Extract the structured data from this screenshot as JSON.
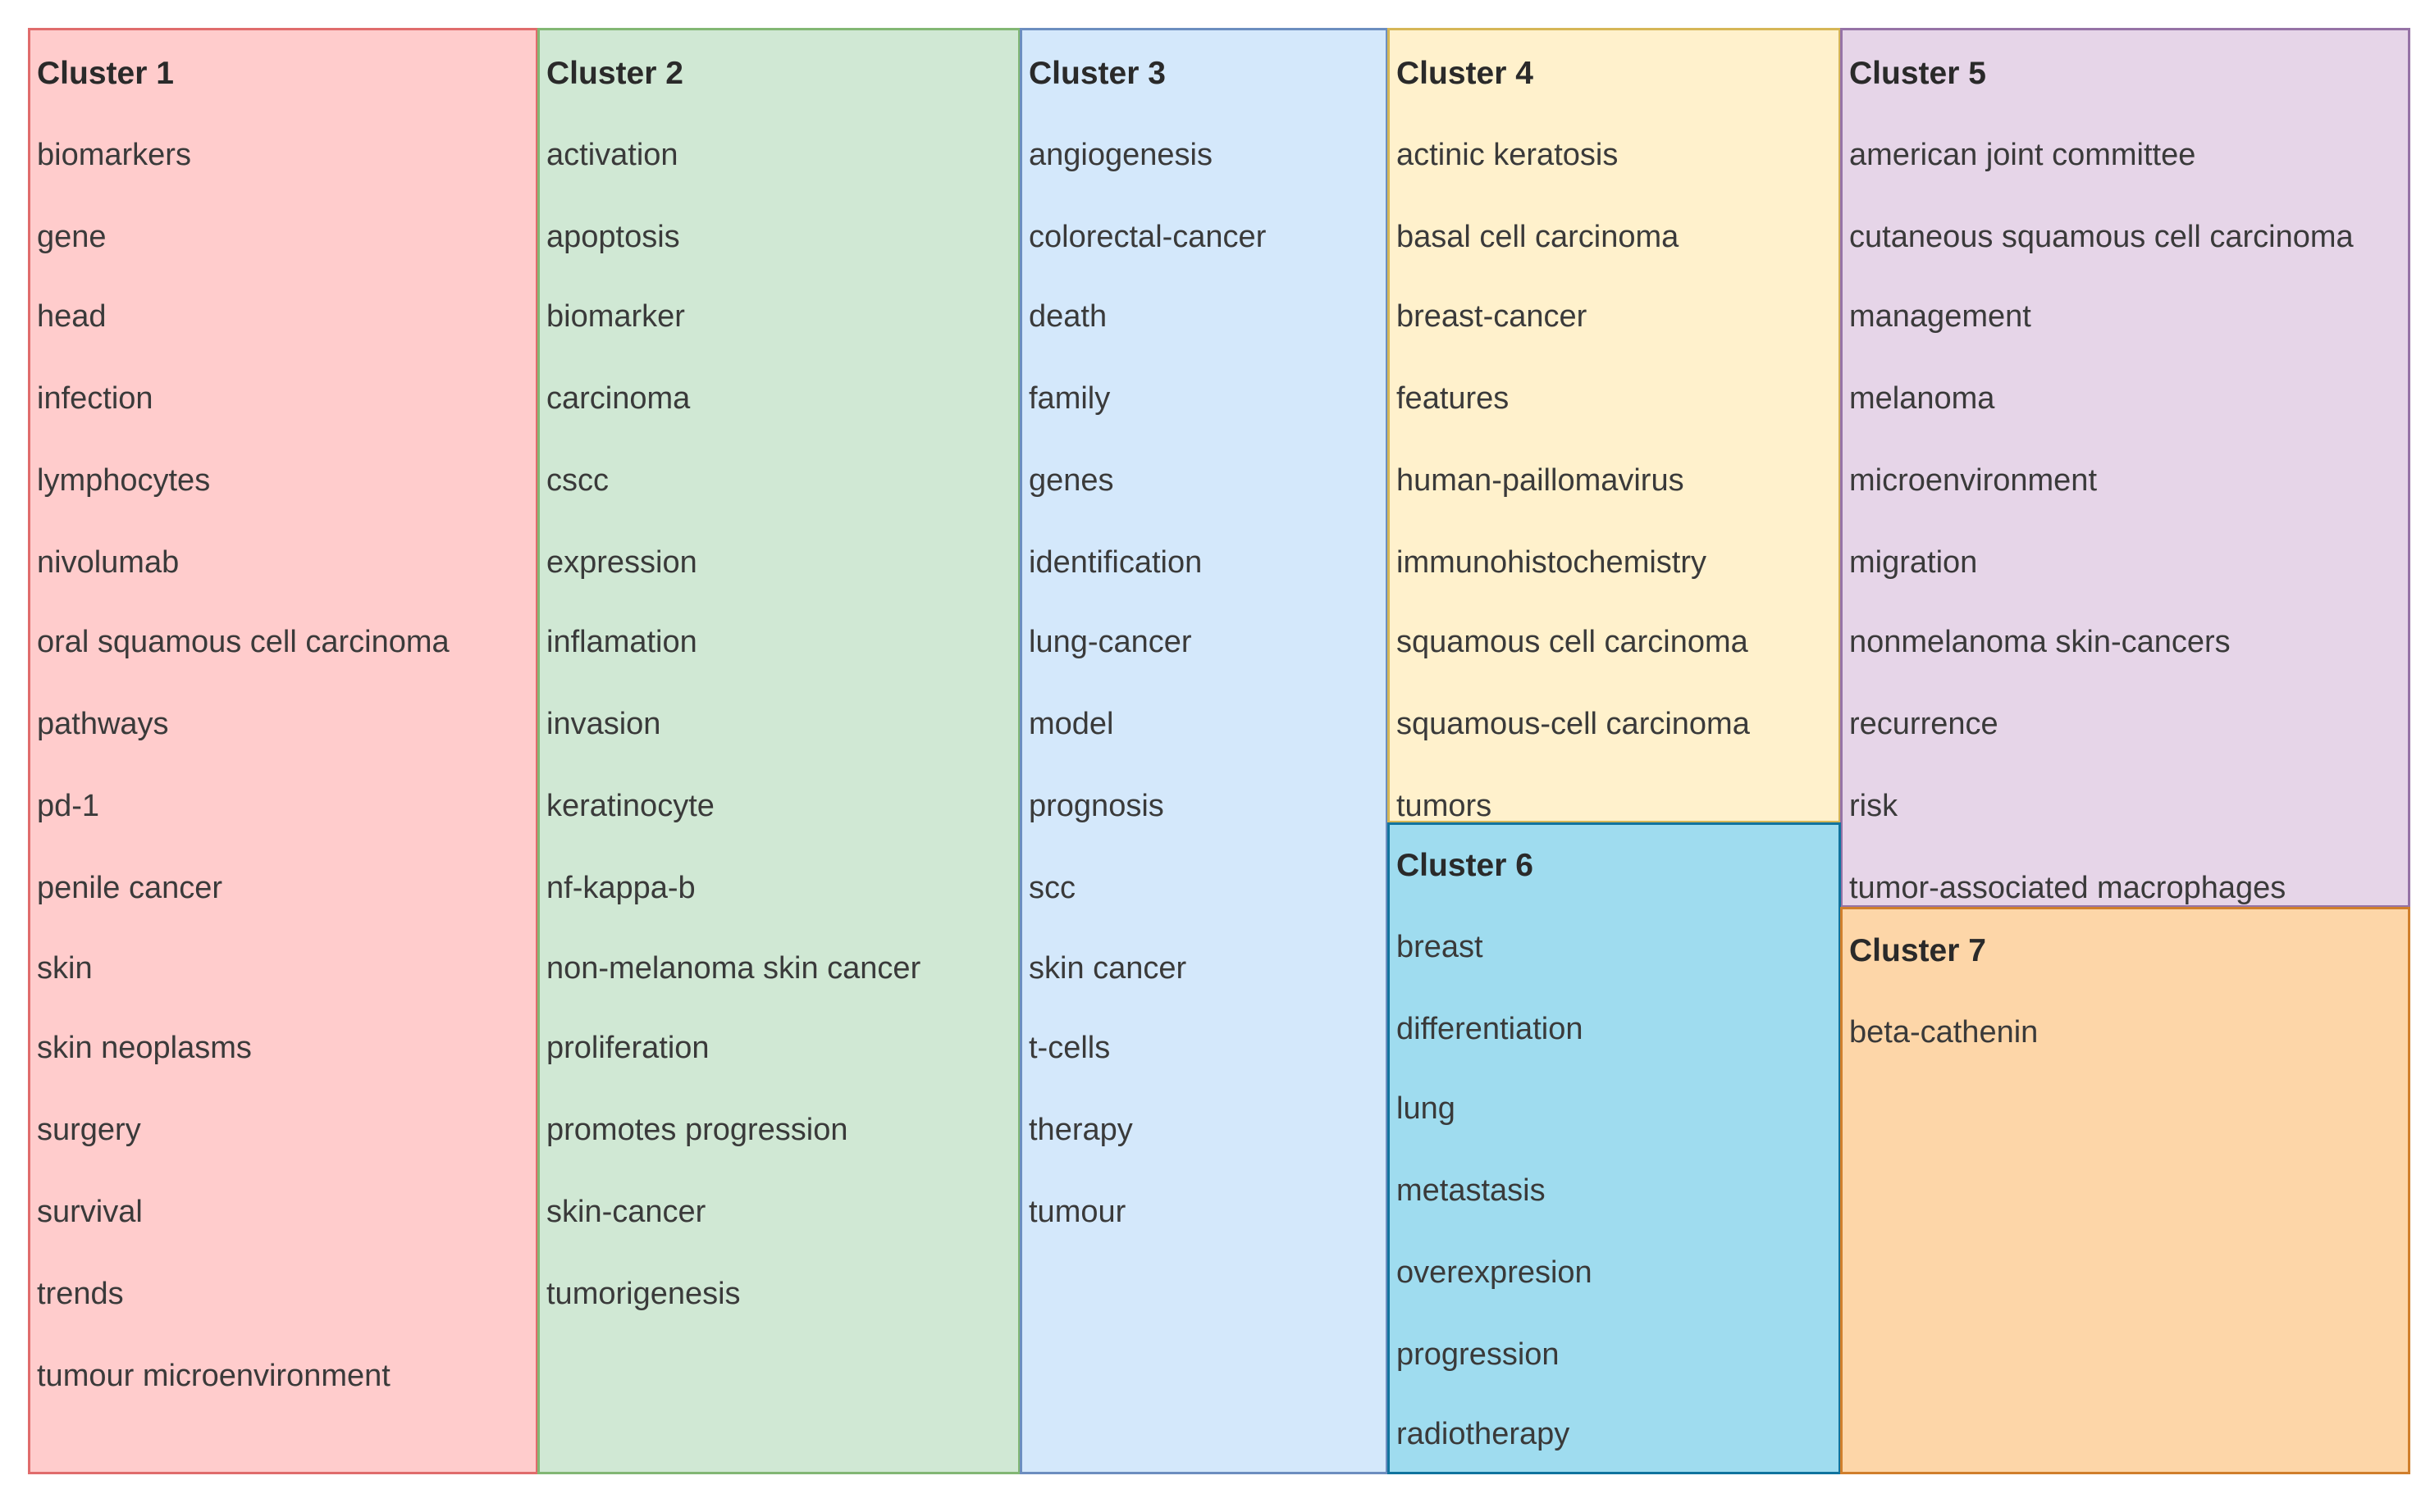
{
  "clusters": [
    {
      "id": "c1",
      "title": "Cluster 1",
      "items": [
        "biomarkers",
        "gene",
        "head",
        "infection",
        "lymphocytes",
        "nivolumab",
        "oral squamous cell carcinoma",
        "pathways",
        "pd-1",
        "penile cancer",
        "skin",
        "skin neoplasms",
        "surgery",
        "survival",
        "trends",
        "tumour microenvironment"
      ],
      "fill": "#ffcccc",
      "stroke": "#e06c6c"
    },
    {
      "id": "c2",
      "title": "Cluster 2",
      "items": [
        "activation",
        "apoptosis",
        "biomarker",
        "carcinoma",
        "cscc",
        "expression",
        "inflamation",
        "invasion",
        "keratinocyte",
        "nf-kappa-b",
        "non-melanoma skin cancer",
        "proliferation",
        "promotes progression",
        "skin-cancer",
        "tumorigenesis"
      ],
      "fill": "#d0e8d4",
      "stroke": "#82b774"
    },
    {
      "id": "c3",
      "title": "Cluster 3",
      "items": [
        "angiogenesis",
        "colorectal-cancer",
        "death",
        "family",
        "genes",
        "identification",
        "lung-cancer",
        "model",
        "prognosis",
        "scc",
        "skin cancer",
        "t-cells",
        "therapy",
        "tumour"
      ],
      "fill": "#d4e8fb",
      "stroke": "#6c8ebf"
    },
    {
      "id": "c4",
      "title": "Cluster 4",
      "items": [
        "actinic keratosis",
        "basal cell carcinoma",
        "breast-cancer",
        "features",
        "human-paillomavirus",
        "immunohistochemistry",
        "squamous cell carcinoma",
        "squamous-cell carcinoma",
        "tumors"
      ],
      "fill": "#fff1cc",
      "stroke": "#d6b656"
    },
    {
      "id": "c5",
      "title": "Cluster 5",
      "items": [
        "american joint committee",
        "cutaneous squamous cell carcinoma",
        "management",
        "melanoma",
        "microenvironment",
        "migration",
        "nonmelanoma skin-cancers",
        "recurrence",
        "risk",
        "tumor-associated macrophages"
      ],
      "fill": "#e6d5e8",
      "stroke": "#9673a6"
    },
    {
      "id": "c6",
      "title": "Cluster 6",
      "items": [
        "breast",
        "differentiation",
        "lung",
        "metastasis",
        "overexpresion",
        "progression",
        "radiotherapy"
      ],
      "fill": "#9fdcef",
      "stroke": "#10739e"
    },
    {
      "id": "c7",
      "title": "Cluster 7",
      "items": [
        "beta-cathenin"
      ],
      "fill": "#fdd6a8",
      "stroke": "#d07f2c"
    }
  ]
}
